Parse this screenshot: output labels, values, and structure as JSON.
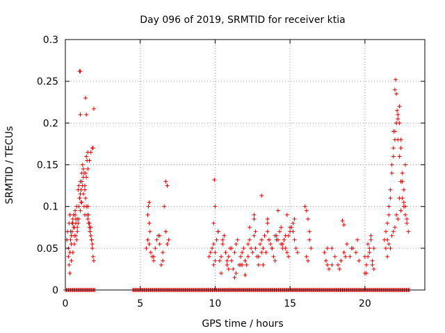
{
  "chart_data": {
    "type": "scatter",
    "title": "Day 096 of 2019, SRMTID for receiver ktia",
    "xlabel": "GPS time / hours",
    "ylabel": "SRMTID / TECUs",
    "xlim": [
      0,
      24
    ],
    "ylim": [
      0,
      0.3
    ],
    "xticks": [
      0,
      5,
      10,
      15,
      20
    ],
    "xtick_labels": [
      "0",
      "5",
      "10",
      "15",
      "20"
    ],
    "yticks": [
      0,
      0.05,
      0.1,
      0.15,
      0.2,
      0.25,
      0.3
    ],
    "ytick_labels": [
      "0",
      "0.05",
      "0.1",
      "0.15",
      "0.2",
      "0.25",
      "0.3"
    ],
    "grid": true,
    "marker": "+",
    "series": [
      {
        "name": "SRMTID",
        "color": "#e00000",
        "x": [
          0.1,
          0.15,
          0.2,
          0.25,
          0.3,
          0.35,
          0.4,
          0.45,
          0.5,
          0.55,
          0.6,
          0.65,
          0.7,
          0.75,
          0.8,
          0.85,
          0.9,
          0.95,
          1.0,
          1.05,
          1.1,
          1.15,
          1.2,
          1.25,
          1.3,
          1.35,
          1.4,
          1.45,
          1.5,
          1.55,
          1.6,
          1.65,
          1.7,
          1.75,
          1.8,
          1.85,
          1.9,
          0.2,
          0.25,
          0.3,
          0.35,
          0.4,
          0.45,
          0.5,
          0.55,
          0.6,
          0.65,
          0.7,
          0.75,
          0.8,
          0.85,
          0.9,
          0.95,
          1.0,
          1.05,
          1.1,
          1.15,
          1.2,
          1.25,
          1.3,
          1.35,
          1.4,
          1.45,
          1.5,
          1.55,
          1.6,
          1.65,
          1.7,
          1.75,
          1.8,
          0.3,
          0.4,
          0.5,
          0.6,
          0.7,
          0.8,
          0.9,
          1.0,
          1.1,
          1.2,
          1.3,
          1.4,
          1.5,
          1.6,
          1.7,
          1.8,
          0.95,
          1.0,
          1.35,
          1.4,
          1.9,
          1.0,
          1.5,
          1.85,
          5.4,
          5.5,
          5.55,
          5.6,
          5.65,
          5.7,
          5.8,
          5.9,
          6.0,
          6.1,
          6.2,
          6.3,
          6.4,
          6.5,
          6.6,
          6.7,
          6.8,
          6.9,
          5.5,
          5.6,
          5.9,
          6.5,
          6.7,
          6.8,
          5.6,
          6.3,
          9.6,
          9.7,
          9.8,
          9.9,
          10.0,
          10.1,
          10.2,
          10.3,
          10.4,
          10.5,
          10.6,
          10.7,
          10.8,
          10.9,
          11.0,
          11.1,
          11.2,
          11.3,
          11.4,
          11.5,
          11.6,
          11.7,
          11.8,
          11.9,
          12.0,
          12.1,
          12.2,
          12.3,
          12.4,
          12.5,
          12.6,
          12.7,
          12.8,
          12.9,
          13.0,
          13.1,
          13.2,
          13.3,
          13.4,
          13.5,
          13.6,
          13.7,
          13.8,
          13.9,
          14.0,
          14.1,
          14.2,
          14.3,
          14.4,
          14.5,
          14.6,
          14.7,
          14.8,
          14.9,
          15.0,
          15.1,
          15.2,
          15.3,
          15.4,
          15.5,
          9.9,
          10.2,
          10.5,
          10.8,
          11.1,
          11.4,
          11.7,
          12.0,
          12.3,
          12.6,
          12.9,
          13.2,
          13.5,
          13.8,
          14.1,
          14.4,
          14.7,
          15.0,
          15.3,
          10.0,
          10.4,
          10.9,
          11.3,
          11.8,
          12.2,
          12.7,
          13.1,
          13.6,
          14.0,
          14.5,
          14.9,
          15.2,
          9.95,
          10.0,
          9.9,
          12.6,
          13.1,
          13.5,
          14.2,
          14.8,
          16.0,
          16.1,
          16.2,
          16.3,
          16.4,
          16.1,
          16.2,
          16.3,
          17.3,
          17.4,
          17.5,
          17.6,
          17.8,
          18.0,
          18.2,
          18.4,
          18.6,
          18.8,
          19.0,
          19.2,
          19.4,
          19.6,
          17.5,
          17.8,
          18.3,
          18.7,
          19.1,
          19.5,
          18.5,
          18.6,
          20.0,
          20.1,
          20.2,
          20.3,
          20.4,
          20.5,
          20.6,
          20.2,
          20.3,
          20.4,
          20.5,
          20.1,
          20.6,
          20.0,
          21.3,
          21.4,
          21.5,
          21.6,
          21.7,
          21.8,
          21.9,
          22.0,
          22.1,
          22.2,
          22.3,
          22.4,
          22.5,
          22.6,
          22.7,
          22.8,
          22.9,
          21.4,
          21.5,
          21.6,
          21.7,
          21.8,
          21.9,
          22.0,
          22.1,
          22.2,
          22.3,
          22.4,
          22.5,
          22.6,
          22.7,
          22.8,
          21.5,
          21.7,
          21.9,
          22.1,
          22.3,
          22.5,
          22.7,
          21.6,
          21.8,
          22.0,
          22.2,
          22.4,
          22.6,
          22.0,
          22.05,
          22.1,
          22.15,
          22.2,
          22.3,
          21.9,
          22.4
        ],
        "y": [
          0.06,
          0.07,
          0.05,
          0.08,
          0.09,
          0.07,
          0.065,
          0.08,
          0.085,
          0.09,
          0.075,
          0.095,
          0.08,
          0.1,
          0.085,
          0.12,
          0.125,
          0.11,
          0.13,
          0.105,
          0.14,
          0.15,
          0.145,
          0.1,
          0.09,
          0.14,
          0.16,
          0.155,
          0.1,
          0.09,
          0.08,
          0.07,
          0.075,
          0.06,
          0.05,
          0.04,
          0.035,
          0.04,
          0.03,
          0.045,
          0.06,
          0.055,
          0.07,
          0.08,
          0.075,
          0.065,
          0.09,
          0.085,
          0.06,
          0.07,
          0.08,
          0.1,
          0.11,
          0.115,
          0.12,
          0.13,
          0.125,
          0.135,
          0.14,
          0.12,
          0.11,
          0.1,
          0.09,
          0.085,
          0.08,
          0.075,
          0.07,
          0.065,
          0.06,
          0.055,
          0.02,
          0.035,
          0.045,
          0.055,
          0.065,
          0.075,
          0.085,
          0.095,
          0.105,
          0.115,
          0.125,
          0.135,
          0.145,
          0.155,
          0.165,
          0.17,
          0.262,
          0.262,
          0.23,
          0.21,
          0.217,
          0.21,
          0.165,
          0.17,
          0.05,
          0.06,
          0.1,
          0.105,
          0.07,
          0.045,
          0.04,
          0.035,
          0.05,
          0.06,
          0.065,
          0.055,
          0.03,
          0.045,
          0.1,
          0.13,
          0.125,
          0.06,
          0.09,
          0.08,
          0.04,
          0.035,
          0.07,
          0.055,
          0.055,
          0.065,
          0.04,
          0.045,
          0.05,
          0.03,
          0.045,
          0.06,
          0.07,
          0.035,
          0.04,
          0.055,
          0.065,
          0.045,
          0.03,
          0.04,
          0.05,
          0.035,
          0.025,
          0.045,
          0.055,
          0.06,
          0.03,
          0.04,
          0.045,
          0.05,
          0.035,
          0.03,
          0.055,
          0.06,
          0.05,
          0.045,
          0.065,
          0.07,
          0.04,
          0.03,
          0.055,
          0.06,
          0.05,
          0.065,
          0.045,
          0.07,
          0.06,
          0.055,
          0.05,
          0.04,
          0.035,
          0.065,
          0.06,
          0.07,
          0.075,
          0.055,
          0.06,
          0.05,
          0.045,
          0.065,
          0.07,
          0.075,
          0.08,
          0.06,
          0.05,
          0.045,
          0.055,
          0.07,
          0.06,
          0.035,
          0.05,
          0.02,
          0.03,
          0.018,
          0.075,
          0.085,
          0.04,
          0.03,
          0.08,
          0.05,
          0.06,
          0.055,
          0.065,
          0.075,
          0.085,
          0.035,
          0.02,
          0.025,
          0.015,
          0.03,
          0.04,
          0.05,
          0.045,
          0.06,
          0.065,
          0.05,
          0.04,
          0.07,
          0.132,
          0.1,
          0.08,
          0.09,
          0.113,
          0.085,
          0.095,
          0.09,
          0.1,
          0.095,
          0.085,
          0.07,
          0.05,
          0.04,
          0.035,
          0.06,
          0.045,
          0.035,
          0.03,
          0.025,
          0.05,
          0.04,
          0.03,
          0.035,
          0.045,
          0.055,
          0.04,
          0.05,
          0.045,
          0.035,
          0.05,
          0.03,
          0.025,
          0.04,
          0.05,
          0.06,
          0.083,
          0.078,
          0.02,
          0.03,
          0.04,
          0.05,
          0.06,
          0.035,
          0.025,
          0.055,
          0.045,
          0.065,
          0.03,
          0.02,
          0.05,
          0.04,
          0.06,
          0.07,
          0.08,
          0.1,
          0.12,
          0.15,
          0.17,
          0.19,
          0.2,
          0.18,
          0.16,
          0.13,
          0.11,
          0.1,
          0.09,
          0.08,
          0.07,
          0.05,
          0.06,
          0.09,
          0.11,
          0.14,
          0.16,
          0.18,
          0.2,
          0.21,
          0.22,
          0.17,
          0.14,
          0.12,
          0.1,
          0.085,
          0.04,
          0.05,
          0.07,
          0.09,
          0.11,
          0.13,
          0.15,
          0.055,
          0.065,
          0.075,
          0.085,
          0.095,
          0.105,
          0.24,
          0.252,
          0.235,
          0.215,
          0.205,
          0.2,
          0.19,
          0.18
        ]
      },
      {
        "name": "zero-level",
        "color": "#e00000",
        "x_range": [
          [
            0.0,
            2.0
          ],
          [
            4.5,
            23.0
          ]
        ],
        "y": 0,
        "step": 0.07
      }
    ]
  }
}
